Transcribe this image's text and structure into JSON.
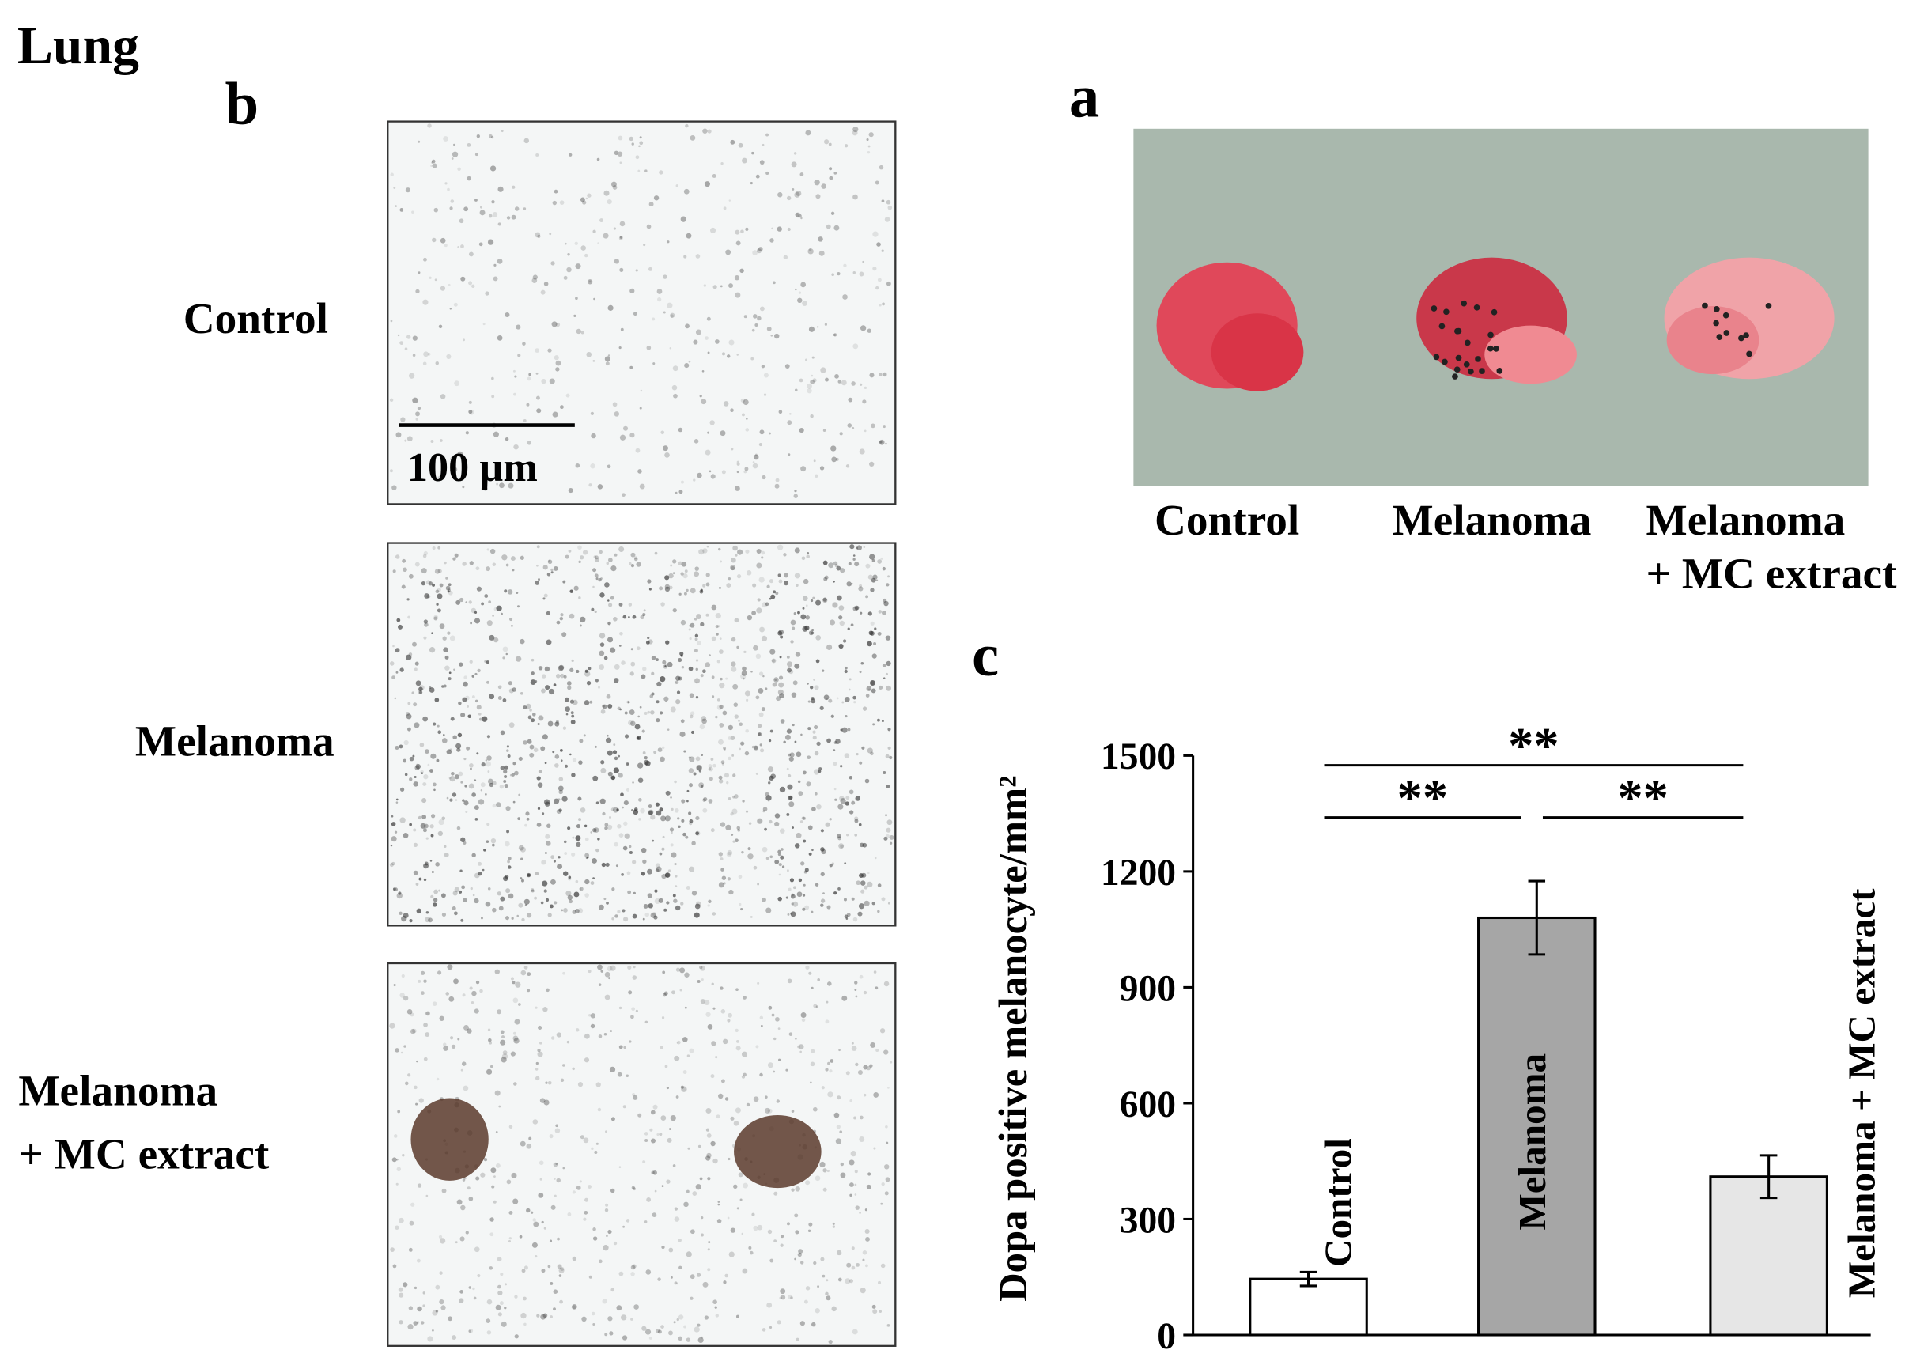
{
  "title": "Lung",
  "panel_b": {
    "label": "b",
    "scale_bar": "100 µm",
    "rows": [
      {
        "lines": [
          "Control"
        ]
      },
      {
        "lines": [
          "Melanoma"
        ]
      },
      {
        "lines": [
          "Melanoma",
          "+ MC extract"
        ]
      }
    ]
  },
  "panel_a": {
    "label": "a",
    "samples": [
      {
        "lines": [
          "Control"
        ]
      },
      {
        "lines": [
          "Melanoma"
        ]
      },
      {
        "lines": [
          "Melanoma",
          "+ MC extract"
        ]
      }
    ]
  },
  "chart_data": {
    "type": "bar",
    "panel_label": "c",
    "ylabel": "Dopa positive melanocyte/mm²",
    "categories": [
      "Control",
      "Melanoma",
      "Melanoma + MC extract"
    ],
    "values": [
      145,
      1080,
      410
    ],
    "errors": [
      18,
      95,
      55
    ],
    "colors": [
      "#ffffff",
      "#a6a6a6",
      "#e6e6e6"
    ],
    "ylim": [
      0,
      1500
    ],
    "yticks": [
      0,
      300,
      600,
      900,
      1200,
      1500
    ],
    "significance": [
      "**",
      "**",
      "**"
    ]
  }
}
